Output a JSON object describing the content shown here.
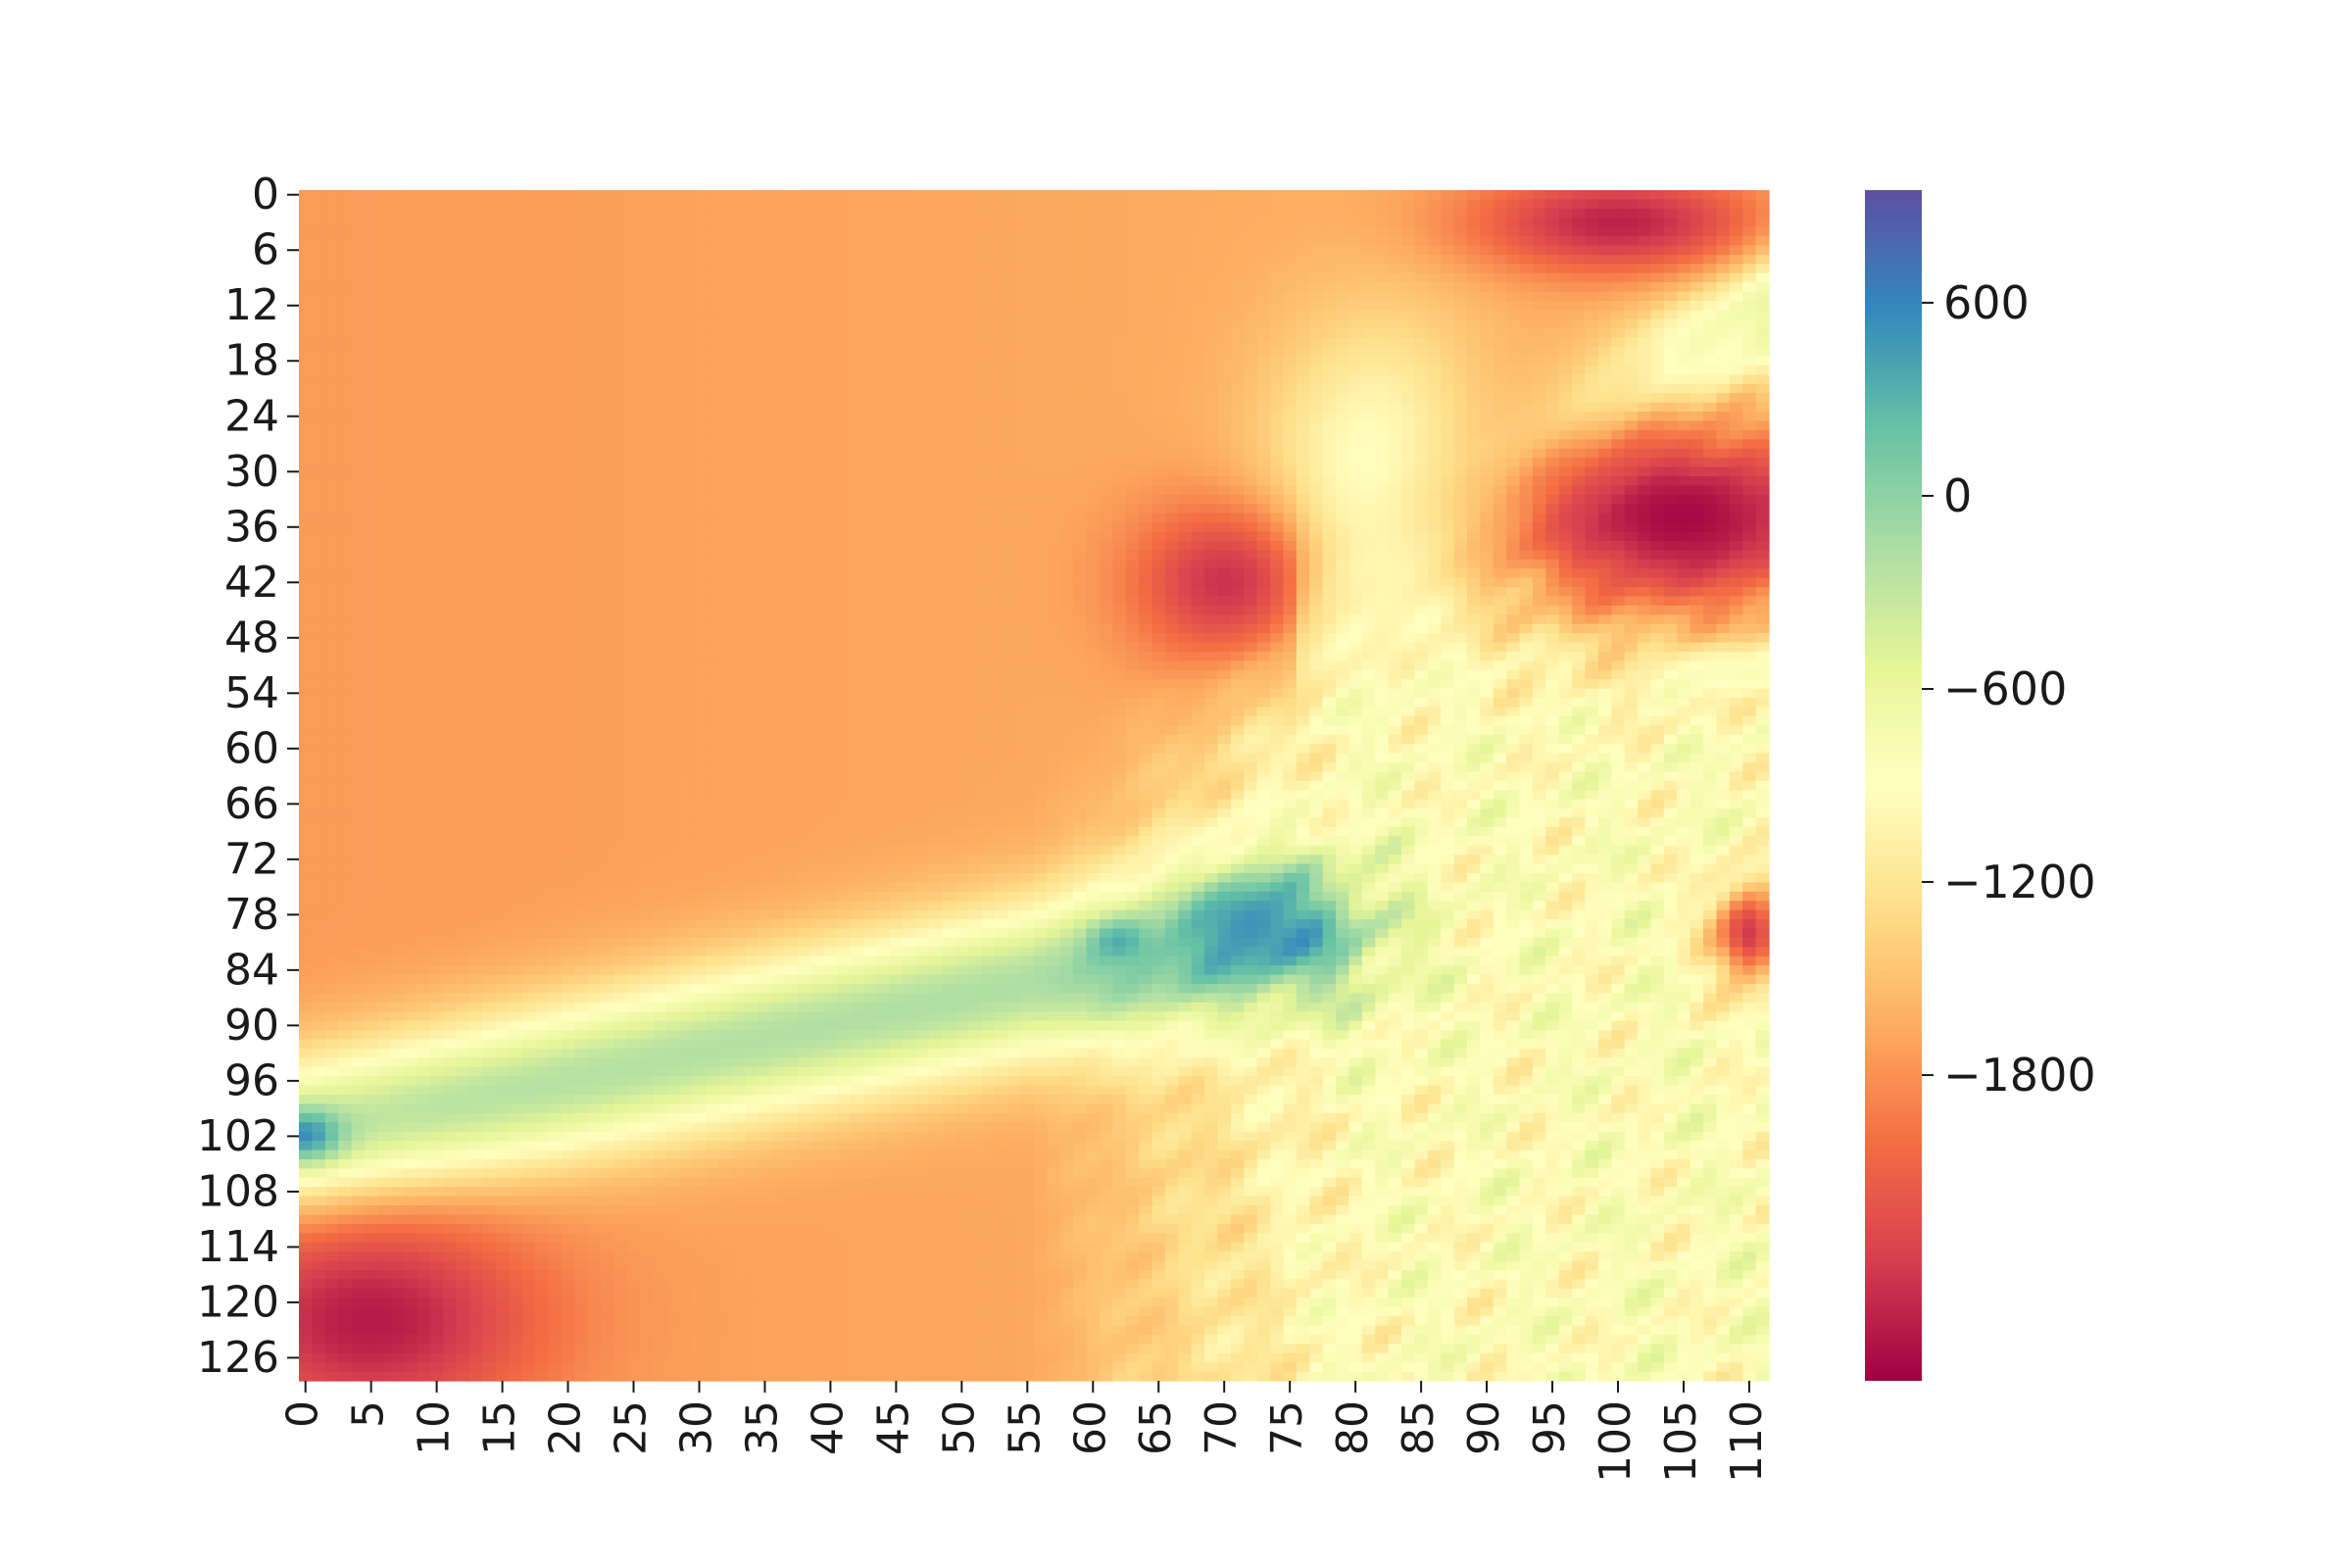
{
  "chart_data": {
    "type": "heatmap",
    "title": "",
    "xlabel": "",
    "ylabel": "",
    "n_cols": 112,
    "n_rows": 129,
    "x_ticks": [
      0,
      5,
      10,
      15,
      20,
      25,
      30,
      35,
      40,
      45,
      50,
      55,
      60,
      65,
      70,
      75,
      80,
      85,
      90,
      95,
      100,
      105,
      110
    ],
    "y_ticks": [
      0,
      6,
      12,
      18,
      24,
      30,
      36,
      42,
      48,
      54,
      60,
      66,
      72,
      78,
      84,
      90,
      96,
      102,
      108,
      114,
      120,
      126
    ],
    "colormap": "Spectral",
    "colormap_stops": [
      "#9e0142",
      "#d53e4f",
      "#f46d43",
      "#fdae61",
      "#fee08b",
      "#ffffbf",
      "#e6f598",
      "#abdda4",
      "#66c2a5",
      "#3288bd",
      "#5e4fa2"
    ],
    "vmin": -2750,
    "vmax": 950,
    "colorbar": {
      "ticks": [
        600,
        0,
        -600,
        -1200,
        -1800
      ],
      "tick_labels": [
        "600",
        "0",
        "−600",
        "−1200",
        "−1800"
      ]
    },
    "regions_description": "Approximate elevation/bathymetry field: deep sea (~-1800) upper-left, deep basin (~-2600) upper-right and lower-left, shallow ridge band (~-300 to 300) running diagonally from row 102 col 0 to row 78 col 72, rugged shelf (~-1000) lower-right",
    "fields": {
      "base": -1750,
      "ridge": {
        "from": [
          0,
          102
        ],
        "to": [
          73,
          80
        ],
        "value": -250,
        "width": 6
      },
      "highlands": [
        {
          "col": 82,
          "row": 32,
          "value": -650,
          "rc": 6,
          "rr": 12
        },
        {
          "col": 72,
          "row": 79,
          "value": 500,
          "rc": 2.5,
          "rr": 3
        },
        {
          "col": 62,
          "row": 81,
          "value": 350,
          "rc": 1.5,
          "rr": 1.5
        },
        {
          "col": 0,
          "row": 102,
          "value": 650,
          "rc": 2,
          "rr": 2
        },
        {
          "col": 108,
          "row": 51,
          "value": -400,
          "rc": 4,
          "rr": 2
        }
      ],
      "deeps": [
        {
          "col": 105,
          "row": 35,
          "value": -2700,
          "rc": 12,
          "rr": 9
        },
        {
          "col": 5,
          "row": 122,
          "value": -2600,
          "rc": 9,
          "rr": 8
        },
        {
          "col": 100,
          "row": 3,
          "value": -2550,
          "rc": 8,
          "rr": 4
        },
        {
          "col": 70,
          "row": 42,
          "value": -2450,
          "rc": 5,
          "rr": 6
        },
        {
          "col": 110,
          "row": 80,
          "value": -2400,
          "rc": 2,
          "rr": 4
        }
      ]
    }
  }
}
